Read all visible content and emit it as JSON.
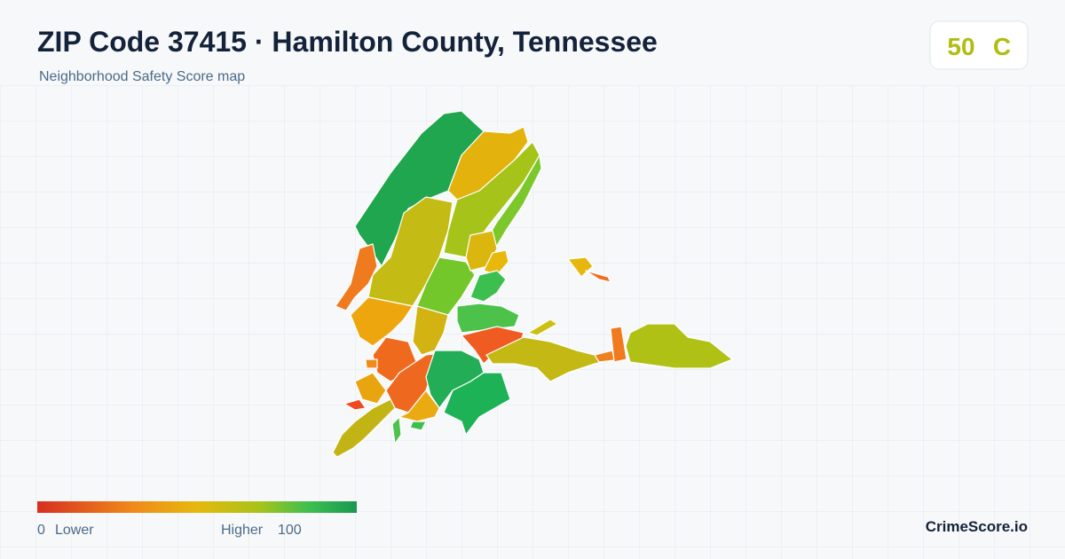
{
  "header": {
    "title": "ZIP Code 37415 · Hamilton County, Tennessee",
    "subtitle": "Neighborhood Safety Score map"
  },
  "score": {
    "value": 50,
    "grade": "C"
  },
  "legend": {
    "min": 0,
    "min_label": "Lower",
    "max_label": "Higher",
    "max": 100
  },
  "brand": "CrimeScore.io"
}
